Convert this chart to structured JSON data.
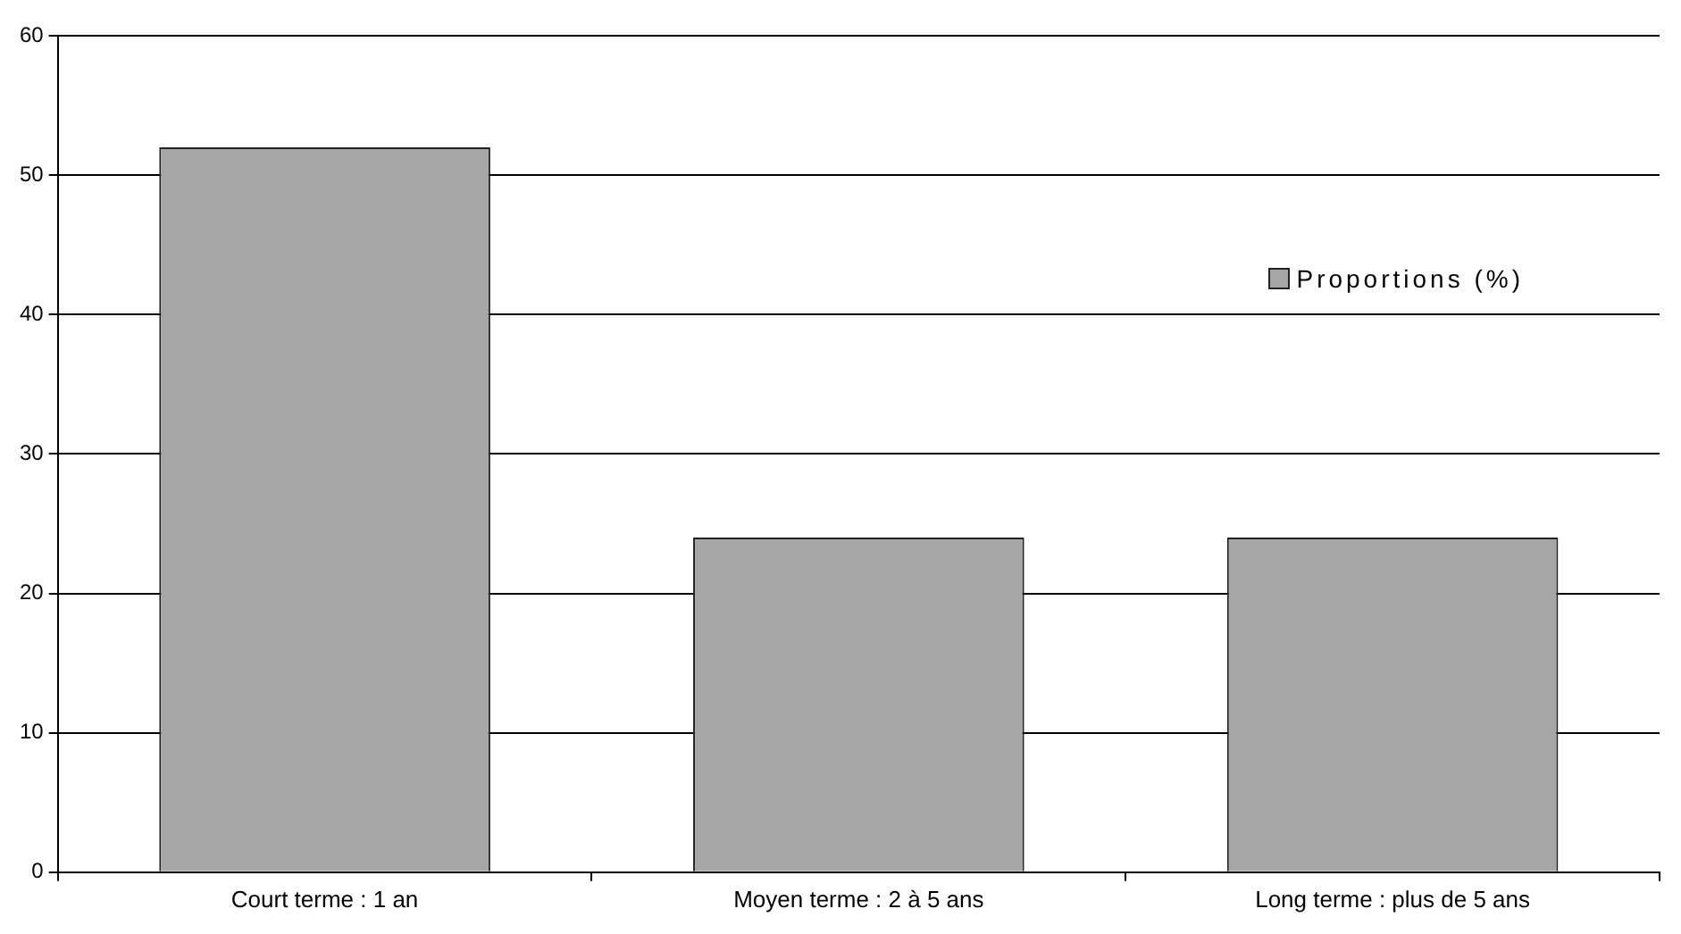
{
  "chart_data": {
    "type": "bar",
    "categories": [
      "Court terme : 1 an",
      "Moyen terme : 2 à 5 ans",
      "Long terme : plus de 5 ans"
    ],
    "series": [
      {
        "name": "Proportions (%)",
        "color": "#a6a6a6",
        "values": [
          52,
          24,
          24
        ]
      }
    ],
    "ylim": [
      0,
      60
    ],
    "yticks": [
      0,
      10,
      20,
      30,
      40,
      50,
      60
    ],
    "grid": "y",
    "legend": "right"
  }
}
